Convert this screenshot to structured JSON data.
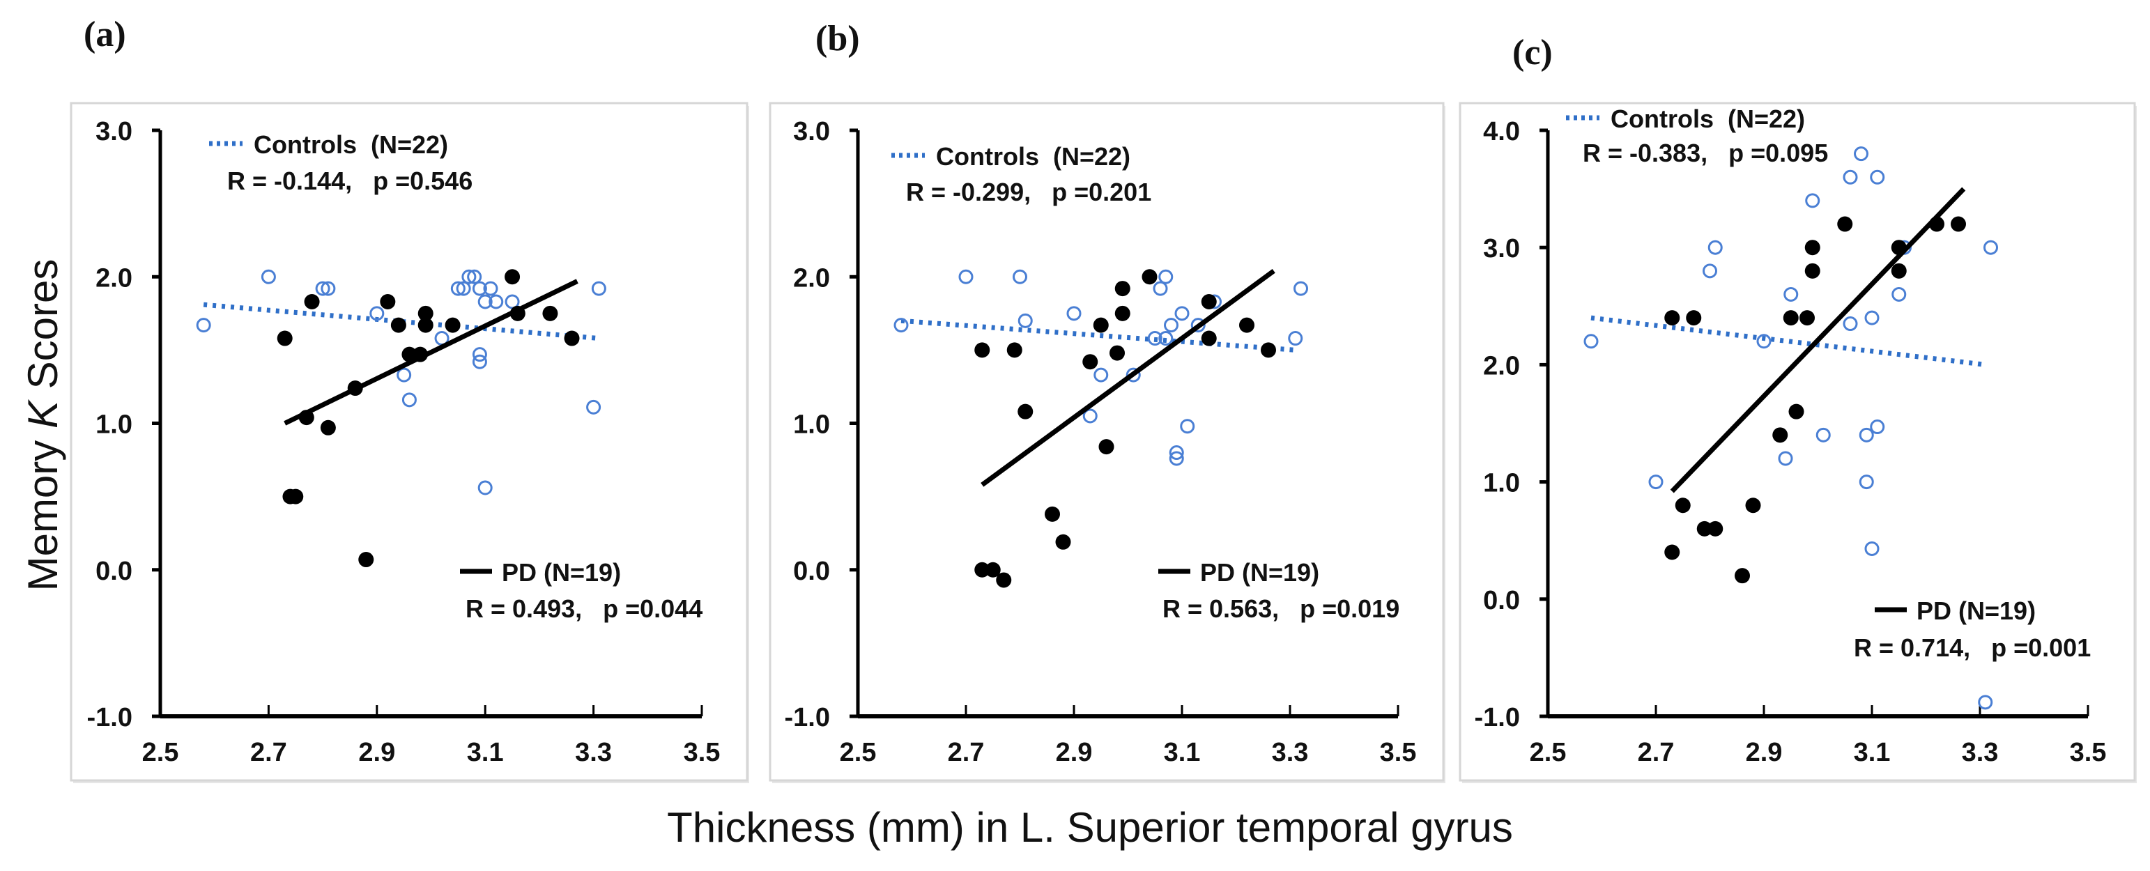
{
  "figure": {
    "ylabel_prefix": "Memory ",
    "ylabel_italic": "K",
    "ylabel_suffix": " Scores",
    "xlabel": "Thickness (mm) in L. Superior temporal gyrus"
  },
  "colors": {
    "controls": "#4a7fd4",
    "controls_line": "#2f6fc8",
    "pd": "#000000"
  },
  "chart_data": [
    {
      "type": "scatter",
      "panel_label": "(a)",
      "xlim": [
        2.5,
        3.5
      ],
      "ylim": [
        -1.0,
        3.0
      ],
      "xticks": [
        "2.5",
        "2.7",
        "2.9",
        "3.1",
        "3.3",
        "3.5"
      ],
      "yticks": [
        "3.0",
        "2.0",
        "1.0",
        "0.0",
        "-1.0"
      ],
      "xlabel": "Thickness (mm) in L. Superior temporal gyrus",
      "ylabel": "Memory K Scores",
      "series": [
        {
          "name": "Controls  (N=22)",
          "stats": "R = -0.144,   p =0.546",
          "marker": "open-circle",
          "trend": [
            [
              2.58,
              1.81
            ],
            [
              3.31,
              1.58
            ]
          ],
          "points": [
            [
              2.58,
              1.67
            ],
            [
              2.7,
              2.0
            ],
            [
              2.8,
              1.92
            ],
            [
              2.81,
              1.92
            ],
            [
              2.9,
              1.75
            ],
            [
              2.95,
              1.33
            ],
            [
              2.96,
              1.16
            ],
            [
              3.02,
              1.58
            ],
            [
              3.05,
              1.92
            ],
            [
              3.07,
              2.0
            ],
            [
              3.08,
              2.0
            ],
            [
              3.09,
              1.92
            ],
            [
              3.11,
              1.92
            ],
            [
              3.1,
              1.83
            ],
            [
              3.09,
              1.47
            ],
            [
              3.09,
              1.42
            ],
            [
              3.15,
              1.83
            ],
            [
              3.31,
              1.92
            ],
            [
              3.3,
              1.11
            ],
            [
              3.1,
              0.56
            ],
            [
              3.06,
              1.92
            ],
            [
              3.12,
              1.83
            ]
          ]
        },
        {
          "name": "PD (N=19)",
          "stats": "R = 0.493,   p =0.044",
          "marker": "filled-circle",
          "trend": [
            [
              2.73,
              1.0
            ],
            [
              3.27,
              1.97
            ]
          ],
          "points": [
            [
              2.73,
              1.58
            ],
            [
              2.74,
              0.5
            ],
            [
              2.75,
              0.5
            ],
            [
              2.77,
              1.04
            ],
            [
              2.78,
              1.83
            ],
            [
              2.81,
              0.97
            ],
            [
              2.86,
              1.24
            ],
            [
              2.88,
              0.07
            ],
            [
              2.92,
              1.83
            ],
            [
              2.94,
              1.67
            ],
            [
              2.96,
              1.47
            ],
            [
              2.98,
              1.47
            ],
            [
              2.99,
              1.75
            ],
            [
              2.99,
              1.67
            ],
            [
              3.04,
              1.67
            ],
            [
              3.15,
              2.0
            ],
            [
              3.16,
              1.75
            ],
            [
              3.22,
              1.75
            ],
            [
              3.26,
              1.58
            ]
          ]
        }
      ]
    },
    {
      "type": "scatter",
      "panel_label": "(b)",
      "xlim": [
        2.5,
        3.5
      ],
      "ylim": [
        -1.0,
        3.0
      ],
      "xticks": [
        "2.5",
        "2.7",
        "2.9",
        "3.1",
        "3.3",
        "3.5"
      ],
      "yticks": [
        "3.0",
        "2.0",
        "1.0",
        "0.0",
        "-1.0"
      ],
      "xlabel": "Thickness (mm) in L. Superior temporal gyrus",
      "ylabel": "Memory K Scores",
      "series": [
        {
          "name": "Controls  (N=22)",
          "stats": "R = -0.299,   p =0.201",
          "marker": "open-circle",
          "trend": [
            [
              2.58,
              1.7
            ],
            [
              3.31,
              1.5
            ]
          ],
          "points": [
            [
              2.58,
              1.67
            ],
            [
              2.7,
              2.0
            ],
            [
              2.8,
              2.0
            ],
            [
              2.81,
              1.7
            ],
            [
              2.9,
              1.75
            ],
            [
              2.93,
              1.05
            ],
            [
              2.95,
              1.33
            ],
            [
              3.01,
              1.33
            ],
            [
              3.06,
              1.92
            ],
            [
              3.07,
              2.0
            ],
            [
              3.08,
              1.67
            ],
            [
              3.09,
              0.8
            ],
            [
              3.09,
              0.76
            ],
            [
              3.1,
              1.75
            ],
            [
              3.11,
              0.98
            ],
            [
              3.13,
              1.67
            ],
            [
              3.15,
              1.83
            ],
            [
              3.16,
              1.83
            ],
            [
              3.32,
              1.92
            ],
            [
              3.31,
              1.58
            ],
            [
              3.05,
              1.58
            ],
            [
              3.07,
              1.58
            ]
          ]
        },
        {
          "name": "PD (N=19)",
          "stats": "R = 0.563,   p =0.019",
          "marker": "filled-circle",
          "trend": [
            [
              2.73,
              0.58
            ],
            [
              3.27,
              2.04
            ]
          ],
          "points": [
            [
              2.73,
              1.5
            ],
            [
              2.73,
              0.0
            ],
            [
              2.75,
              0.0
            ],
            [
              2.77,
              -0.07
            ],
            [
              2.79,
              1.5
            ],
            [
              2.81,
              1.08
            ],
            [
              2.86,
              0.38
            ],
            [
              2.88,
              0.19
            ],
            [
              2.93,
              1.42
            ],
            [
              2.95,
              1.67
            ],
            [
              2.96,
              0.84
            ],
            [
              2.98,
              1.48
            ],
            [
              2.99,
              1.75
            ],
            [
              2.99,
              1.92
            ],
            [
              3.04,
              2.0
            ],
            [
              3.15,
              1.58
            ],
            [
              3.15,
              1.83
            ],
            [
              3.22,
              1.67
            ],
            [
              3.26,
              1.5
            ]
          ]
        }
      ]
    },
    {
      "type": "scatter",
      "panel_label": "(c)",
      "xlim": [
        2.5,
        3.5
      ],
      "ylim": [
        -1.0,
        4.0
      ],
      "xticks": [
        "2.5",
        "2.7",
        "2.9",
        "3.1",
        "3.3",
        "3.5"
      ],
      "yticks": [
        "4.0",
        "3.0",
        "2.0",
        "1.0",
        "0.0",
        "-1.0"
      ],
      "xlabel": "Thickness (mm) in L. Superior temporal gyrus",
      "ylabel": "Memory K Scores",
      "series": [
        {
          "name": "Controls  (N=22)",
          "stats": "R = -0.383,   p =0.095",
          "marker": "open-circle",
          "trend": [
            [
              2.58,
              2.4
            ],
            [
              3.31,
              2.0
            ]
          ],
          "points": [
            [
              2.58,
              2.2
            ],
            [
              2.7,
              1.0
            ],
            [
              2.8,
              2.8
            ],
            [
              2.81,
              3.0
            ],
            [
              2.9,
              2.2
            ],
            [
              2.94,
              1.2
            ],
            [
              2.95,
              2.6
            ],
            [
              2.99,
              3.4
            ],
            [
              3.01,
              1.4
            ],
            [
              3.06,
              3.6
            ],
            [
              3.06,
              2.35
            ],
            [
              3.08,
              3.8
            ],
            [
              3.09,
              1.0
            ],
            [
              3.1,
              0.43
            ],
            [
              3.09,
              1.4
            ],
            [
              3.11,
              1.47
            ],
            [
              3.11,
              3.6
            ],
            [
              3.1,
              2.4
            ],
            [
              3.15,
              2.6
            ],
            [
              3.16,
              3.0
            ],
            [
              3.32,
              3.0
            ],
            [
              3.31,
              -0.88
            ]
          ]
        },
        {
          "name": "PD (N=19)",
          "stats": "R = 0.714,   p =0.001",
          "marker": "filled-circle",
          "trend": [
            [
              2.73,
              0.92
            ],
            [
              3.27,
              3.5
            ]
          ],
          "points": [
            [
              2.73,
              0.4
            ],
            [
              2.73,
              2.4
            ],
            [
              2.75,
              0.8
            ],
            [
              2.77,
              2.4
            ],
            [
              2.79,
              0.6
            ],
            [
              2.81,
              0.6
            ],
            [
              2.86,
              0.2
            ],
            [
              2.88,
              0.8
            ],
            [
              2.93,
              1.4
            ],
            [
              2.95,
              2.4
            ],
            [
              2.96,
              1.6
            ],
            [
              2.98,
              2.4
            ],
            [
              2.99,
              2.8
            ],
            [
              2.99,
              3.0
            ],
            [
              3.05,
              3.2
            ],
            [
              3.15,
              2.8
            ],
            [
              3.15,
              3.0
            ],
            [
              3.22,
              3.2
            ],
            [
              3.26,
              3.2
            ]
          ]
        }
      ]
    }
  ]
}
